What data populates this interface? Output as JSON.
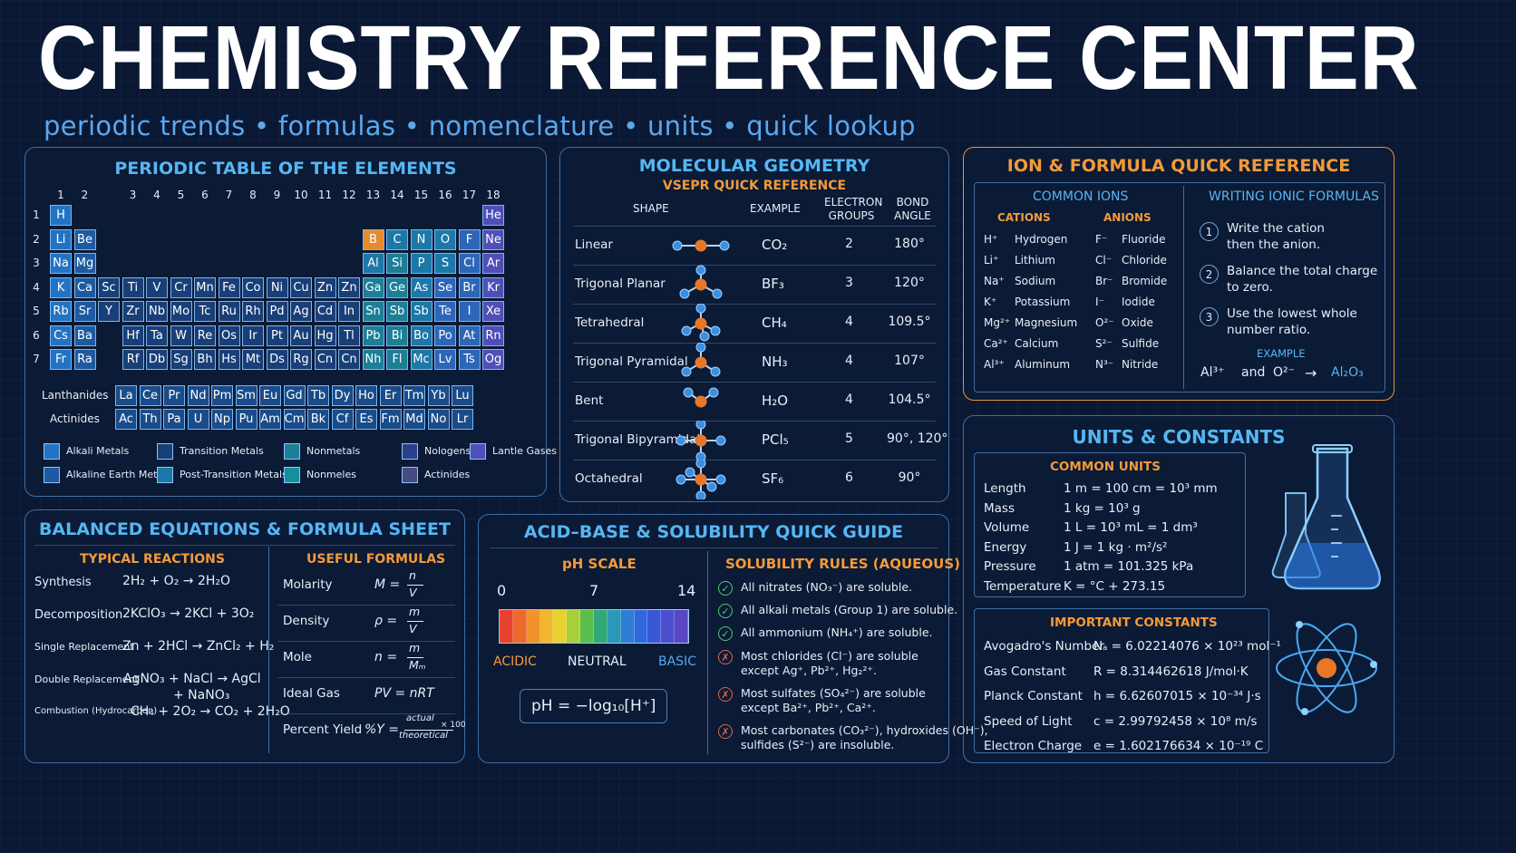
{
  "header": {
    "title": "CHEMISTRY REFERENCE CENTER",
    "subtitle": "periodic trends • formulas • nomenclature • units • quick lookup"
  },
  "periodic": {
    "title": "PERIODIC TABLE OF THE ELEMENTS",
    "groups": [
      "1",
      "2",
      "3",
      "4",
      "5",
      "6",
      "7",
      "8",
      "9",
      "10",
      "11",
      "12",
      "13",
      "14",
      "15",
      "16",
      "17",
      "18"
    ],
    "periods": [
      "1",
      "2",
      "3",
      "4",
      "5",
      "6",
      "7"
    ],
    "rows": [
      [
        [
          "H",
          0,
          "alk"
        ],
        [
          "He",
          17,
          "ng"
        ]
      ],
      [
        [
          "Li",
          0,
          "alk"
        ],
        [
          "Be",
          1,
          "ae"
        ],
        [
          "B",
          12,
          "or"
        ],
        [
          "C",
          13,
          "pt"
        ],
        [
          "N",
          14,
          "pt"
        ],
        [
          "O",
          15,
          "pt"
        ],
        [
          "F",
          16,
          "hal"
        ],
        [
          "Ne",
          17,
          "ng"
        ]
      ],
      [
        [
          "Na",
          0,
          "alk"
        ],
        [
          "Mg",
          1,
          "ae"
        ],
        [
          "Al",
          12,
          "pt"
        ],
        [
          "Si",
          13,
          "nm"
        ],
        [
          "P",
          14,
          "pt"
        ],
        [
          "S",
          15,
          "pt"
        ],
        [
          "Cl",
          16,
          "hal"
        ],
        [
          "Ar",
          17,
          "ng"
        ]
      ],
      [
        [
          "K",
          0,
          "alk"
        ],
        [
          "Ca",
          1,
          "ae"
        ],
        [
          "Sc",
          2,
          "tr"
        ],
        [
          "Ti",
          3,
          "tr"
        ],
        [
          "V",
          4,
          "tr"
        ],
        [
          "Cr",
          5,
          "tr"
        ],
        [
          "Mn",
          6,
          "tr"
        ],
        [
          "Fe",
          7,
          "tr"
        ],
        [
          "Co",
          8,
          "tr"
        ],
        [
          "Ni",
          9,
          "tr"
        ],
        [
          "Cu",
          10,
          "tr"
        ],
        [
          "Zn",
          11,
          "tr"
        ],
        [
          "Zn",
          12,
          "tr"
        ],
        [
          "Ga",
          13,
          "nm"
        ],
        [
          "Ge",
          14,
          "nm"
        ],
        [
          "As",
          15,
          "pt"
        ],
        [
          "Se",
          16,
          "hal"
        ],
        [
          "Br",
          17,
          "hal"
        ],
        [
          "Kr",
          18,
          "ng"
        ]
      ],
      [
        [
          "Rb",
          0,
          "alk"
        ],
        [
          "Sr",
          1,
          "ae"
        ],
        [
          "Y",
          2,
          "tr"
        ],
        [
          "Zr",
          3,
          "tr"
        ],
        [
          "Nb",
          4,
          "tr"
        ],
        [
          "Mo",
          5,
          "tr"
        ],
        [
          "Tc",
          6,
          "tr"
        ],
        [
          "Ru",
          7,
          "tr"
        ],
        [
          "Rh",
          8,
          "tr"
        ],
        [
          "Pd",
          9,
          "tr"
        ],
        [
          "Ag",
          10,
          "tr"
        ],
        [
          "Cd",
          11,
          "tr"
        ],
        [
          "In",
          12,
          "tr"
        ],
        [
          "Sn",
          13,
          "nm"
        ],
        [
          "Sb",
          14,
          "nm"
        ],
        [
          "Sb",
          15,
          "pt"
        ],
        [
          "Te",
          16,
          "hal"
        ],
        [
          "I",
          17,
          "hal"
        ],
        [
          "Xe",
          18,
          "ng"
        ]
      ],
      [
        [
          "Cs",
          0,
          "alk"
        ],
        [
          "Ba",
          1,
          "ae"
        ],
        [
          "Hf",
          3,
          "tr"
        ],
        [
          "Ta",
          4,
          "tr"
        ],
        [
          "W",
          5,
          "tr"
        ],
        [
          "Re",
          6,
          "tr"
        ],
        [
          "Os",
          7,
          "tr"
        ],
        [
          "Ir",
          8,
          "tr"
        ],
        [
          "Pt",
          9,
          "tr"
        ],
        [
          "Au",
          10,
          "tr"
        ],
        [
          "Hg",
          11,
          "tr"
        ],
        [
          "Tl",
          12,
          "tr"
        ],
        [
          "Pb",
          13,
          "nm"
        ],
        [
          "Bi",
          14,
          "nm"
        ],
        [
          "Bo",
          15,
          "pt"
        ],
        [
          "Po",
          16,
          "hal"
        ],
        [
          "At",
          17,
          "hal"
        ],
        [
          "Rn",
          18,
          "ng"
        ]
      ],
      [
        [
          "Fr",
          0,
          "alk"
        ],
        [
          "Ra",
          1,
          "ae"
        ],
        [
          "Rf",
          3,
          "tr"
        ],
        [
          "Db",
          4,
          "tr"
        ],
        [
          "Sg",
          5,
          "tr"
        ],
        [
          "Bh",
          6,
          "tr"
        ],
        [
          "Hs",
          7,
          "tr"
        ],
        [
          "Mt",
          8,
          "tr"
        ],
        [
          "Ds",
          9,
          "tr"
        ],
        [
          "Rg",
          10,
          "tr"
        ],
        [
          "Cn",
          11,
          "tr"
        ],
        [
          "Cn",
          12,
          "tr"
        ],
        [
          "Nh",
          13,
          "nm"
        ],
        [
          "Fl",
          14,
          "nm"
        ],
        [
          "Mc",
          15,
          "pt"
        ],
        [
          "Lv",
          16,
          "hal"
        ],
        [
          "Ts",
          17,
          "hal"
        ],
        [
          "Og",
          18,
          "ng"
        ]
      ]
    ],
    "lanthanides_label": "Lanthanides",
    "actinides_label": "Actinides",
    "lanthanides": [
      "La",
      "Ce",
      "Pr",
      "Nd",
      "Pm",
      "Sm",
      "Eu",
      "Gd",
      "Tb",
      "Dy",
      "Ho",
      "Er",
      "Tm",
      "Yb",
      "Lu"
    ],
    "actinides": [
      "Ac",
      "Th",
      "Pa",
      "U",
      "Np",
      "Pu",
      "Am",
      "Cm",
      "Bk",
      "Cf",
      "Es",
      "Fm",
      "Md",
      "No",
      "Lr"
    ],
    "legend": [
      [
        "Alkali Metals",
        "#2373c4"
      ],
      [
        "Transition Metals",
        "#193f78"
      ],
      [
        "Nonmetals",
        "#1c7f98"
      ],
      [
        "Nologens",
        "#2d3f8a"
      ],
      [
        "Lantle Gases",
        "#4f4fb8"
      ],
      [
        "Alkaline Earth Metals",
        "#1d5aa0"
      ],
      [
        "Post-Transition Metals",
        "#1b78a8"
      ],
      [
        "Nonmeles",
        "#13909a"
      ],
      [
        "Actinides",
        "#4a4a82"
      ]
    ]
  },
  "geometry": {
    "title": "MOLECULAR GEOMETRY",
    "subtitle": "VSEPR QUICK REFERENCE",
    "headers": [
      "SHAPE",
      "EXAMPLE",
      "ELECTRON GROUPS",
      "BOND ANGLE"
    ],
    "rows": [
      [
        "Linear",
        "CO₂",
        "2",
        "180°"
      ],
      [
        "Trigonal Planar",
        "BF₃",
        "3",
        "120°"
      ],
      [
        "Tetrahedral",
        "CH₄",
        "4",
        "109.5°"
      ],
      [
        "Trigonal Pyramidal",
        "NH₃",
        "4",
        "107°"
      ],
      [
        "Bent",
        "H₂O",
        "4",
        "104.5°"
      ],
      [
        "Trigonal Bipyramidal",
        "PCl₅",
        "5",
        "90°, 120°"
      ],
      [
        "Octahedral",
        "SF₆",
        "6",
        "90°"
      ]
    ]
  },
  "ions": {
    "title": "ION & FORMULA QUICK REFERENCE",
    "common_title": "COMMON IONS",
    "cations_label": "CATIONS",
    "anions_label": "ANIONS",
    "cations": [
      [
        "H⁺",
        "Hydrogen"
      ],
      [
        "Li⁺",
        "Lithium"
      ],
      [
        "Na⁺",
        "Sodium"
      ],
      [
        "K⁺",
        "Potassium"
      ],
      [
        "Mg²⁺",
        "Magnesium"
      ],
      [
        "Ca²⁺",
        "Calcium"
      ],
      [
        "Al³⁺",
        "Aluminum"
      ]
    ],
    "anions": [
      [
        "F⁻",
        "Fluoride"
      ],
      [
        "Cl⁻",
        "Chloride"
      ],
      [
        "Br⁻",
        "Bromide"
      ],
      [
        "I⁻",
        "Iodide"
      ],
      [
        "O²⁻",
        "Oxide"
      ],
      [
        "S²⁻",
        "Sulfide"
      ],
      [
        "N³⁻",
        "Nitride"
      ]
    ],
    "writing_title": "WRITING IONIC FORMULAS",
    "steps": [
      [
        "1",
        "Write the cation",
        "then the anion."
      ],
      [
        "2",
        "Balance the total charge",
        "to zero."
      ],
      [
        "3",
        "Use the lowest whole",
        "number ratio."
      ]
    ],
    "example_label": "EXAMPLE",
    "example_a": "Al³⁺",
    "example_and": "and",
    "example_b": "O²⁻",
    "example_arrow": "→",
    "example_result": "Al₂O₃"
  },
  "units": {
    "title": "UNITS & CONSTANTS",
    "common_title": "COMMON UNITS",
    "rows": [
      [
        "Length",
        "1 m = 100 cm = 10³ mm"
      ],
      [
        "Mass",
        "1 kg = 10³ g"
      ],
      [
        "Volume",
        "1 L = 10³ mL = 1 dm³"
      ],
      [
        "Energy",
        "1 J = 1 kg · m²/s²"
      ],
      [
        "Pressure",
        "1 atm = 101.325 kPa"
      ],
      [
        "Temperature",
        "K = °C + 273.15"
      ]
    ],
    "constants_title": "IMPORTANT CONSTANTS",
    "constants": [
      [
        "Avogadro's Number",
        "Nₐ = 6.02214076 × 10²³ mol⁻¹"
      ],
      [
        "Gas Constant",
        "R = 8.314462618 J/mol·K"
      ],
      [
        "Planck Constant",
        "h = 6.62607015 × 10⁻³⁴ J·s"
      ],
      [
        "Speed of Light",
        "c = 2.99792458 × 10⁸ m/s"
      ],
      [
        "Electron Charge",
        "e = 1.602176634 × 10⁻¹⁹ C"
      ]
    ]
  },
  "equations": {
    "title": "BALANCED EQUATIONS & FORMULA SHEET",
    "reactions_title": "TYPICAL REACTIONS",
    "formulas_title": "USEFUL FORMULAS",
    "reactions": [
      [
        "Synthesis",
        "2H₂ + O₂ → 2H₂O",
        ""
      ],
      [
        "Decomposition",
        "2KClO₃ → 2KCl + 3O₂",
        ""
      ],
      [
        "Single Replacement",
        "Zn + 2HCl → ZnCl₂ + H₂",
        ""
      ],
      [
        "Double Replacement",
        "AgNO₃ + NaCl → AgCl",
        "+ NaNO₃"
      ],
      [
        "Combustion (Hydrocarbon)",
        "CH₄ + 2O₂ → CO₂ + 2H₂O",
        ""
      ]
    ],
    "formulas": [
      [
        "Molarity",
        "M =",
        "n",
        "V"
      ],
      [
        "Density",
        "ρ =",
        "m",
        "V"
      ],
      [
        "Mole",
        "n =",
        "m",
        "Mₘ"
      ],
      [
        "Ideal Gas",
        "PV = nRT",
        "",
        ""
      ],
      [
        "Percent Yield",
        "%Y =",
        "actual",
        "theoretical"
      ]
    ],
    "yield_suffix": "× 100"
  },
  "acidbase": {
    "title": "ACID–BASE & SOLUBILITY QUICK GUIDE",
    "ph_title": "pH SCALE",
    "ph_labels": [
      "0",
      "7",
      "14"
    ],
    "ph_words": [
      "ACIDIC",
      "NEUTRAL",
      "BASIC"
    ],
    "ph_formula": "pH = −log₁₀[H⁺]",
    "ph_colors": [
      "#e8432e",
      "#ee6a2a",
      "#f2922a",
      "#f2b82c",
      "#e6d12f",
      "#a8cf3a",
      "#5bbd4a",
      "#2fa97a",
      "#2a98b8",
      "#2d7ed4",
      "#2f67dc",
      "#3a57d6",
      "#4b4fce",
      "#5947c4"
    ],
    "sol_title": "SOLUBILITY RULES (AQUEOUS)",
    "rules": [
      [
        "ok",
        "All nitrates (NO₃⁻) are soluble.",
        ""
      ],
      [
        "ok",
        "All alkali metals (Group 1) are soluble.",
        ""
      ],
      [
        "ok",
        "All ammonium (NH₄⁺) are soluble.",
        ""
      ],
      [
        "no",
        "Most chlorides (Cl⁻) are soluble",
        "except Ag⁺, Pb²⁺, Hg₂²⁺."
      ],
      [
        "no",
        "Most sulfates (SO₄²⁻) are soluble",
        "except Ba²⁺, Pb²⁺, Ca²⁺."
      ],
      [
        "no",
        "Most carbonates (CO₃²⁻), hydroxides (OH⁻),",
        "sulfides (S²⁻) are insoluble."
      ]
    ]
  }
}
